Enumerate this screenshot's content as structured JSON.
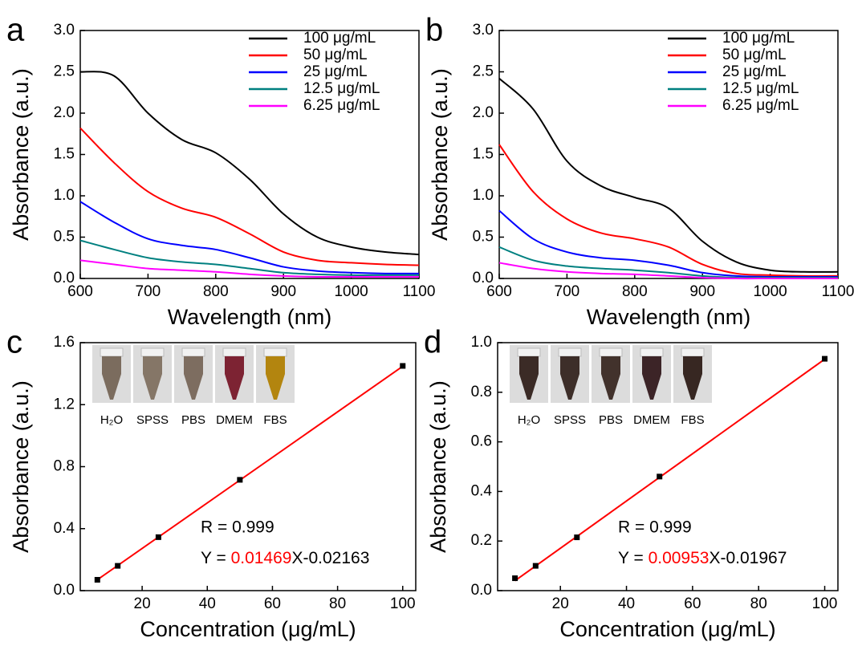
{
  "chart_data": [
    {
      "type": "line",
      "label": "a",
      "x_label": "Wavelength (nm)",
      "y_label": "Absorbance (a.u.)",
      "x": [
        600,
        650,
        700,
        750,
        800,
        850,
        900,
        950,
        1000,
        1050,
        1100
      ],
      "xlim": [
        600,
        1100
      ],
      "xticks": [
        600,
        700,
        800,
        900,
        1000,
        1100
      ],
      "ylim": [
        0,
        3
      ],
      "yticks": [
        {
          "value": 0,
          "label": "0.0"
        },
        0.5,
        {
          "value": 1,
          "label": "1.0"
        },
        1.5,
        {
          "value": 2,
          "label": "2.0"
        },
        2.5,
        {
          "value": 3,
          "label": "3.0"
        }
      ],
      "series": [
        {
          "name": "100 μg/mL",
          "color": "#000000",
          "values": [
            2.5,
            2.45,
            2.0,
            1.68,
            1.52,
            1.2,
            0.78,
            0.5,
            0.38,
            0.32,
            0.29
          ]
        },
        {
          "name": "50 μg/mL",
          "color": "#ff0000",
          "values": [
            1.82,
            1.4,
            1.05,
            0.85,
            0.74,
            0.54,
            0.32,
            0.22,
            0.19,
            0.17,
            0.16
          ]
        },
        {
          "name": "25 μg/mL",
          "color": "#0000ff",
          "values": [
            0.93,
            0.68,
            0.48,
            0.4,
            0.35,
            0.25,
            0.14,
            0.09,
            0.07,
            0.06,
            0.06
          ]
        },
        {
          "name": "12.5 μg/mL",
          "color": "#008080",
          "values": [
            0.46,
            0.35,
            0.25,
            0.2,
            0.17,
            0.12,
            0.07,
            0.05,
            0.04,
            0.04,
            0.04
          ]
        },
        {
          "name": "6.25 μg/mL",
          "color": "#ff00ff",
          "values": [
            0.22,
            0.17,
            0.12,
            0.1,
            0.08,
            0.05,
            0.03,
            0.02,
            0.02,
            0.02,
            0.02
          ]
        }
      ]
    },
    {
      "type": "line",
      "label": "b",
      "x_label": "Wavelength (nm)",
      "y_label": "Absorbance (a.u.)",
      "x": [
        600,
        650,
        700,
        750,
        800,
        850,
        900,
        950,
        1000,
        1050,
        1100
      ],
      "xlim": [
        600,
        1100
      ],
      "xticks": [
        600,
        700,
        800,
        900,
        1000,
        1100
      ],
      "ylim": [
        0,
        3
      ],
      "yticks": [
        {
          "value": 0,
          "label": "0.0"
        },
        0.5,
        {
          "value": 1,
          "label": "1.0"
        },
        1.5,
        {
          "value": 2,
          "label": "2.0"
        },
        2.5,
        {
          "value": 3,
          "label": "3.0"
        }
      ],
      "series": [
        {
          "name": "100 μg/mL",
          "color": "#000000",
          "values": [
            2.42,
            2.05,
            1.42,
            1.12,
            0.98,
            0.85,
            0.45,
            0.2,
            0.1,
            0.08,
            0.08
          ]
        },
        {
          "name": "50 μg/mL",
          "color": "#ff0000",
          "values": [
            1.62,
            1.05,
            0.72,
            0.55,
            0.48,
            0.38,
            0.17,
            0.06,
            0.04,
            0.03,
            0.03
          ]
        },
        {
          "name": "25 μg/mL",
          "color": "#0000ff",
          "values": [
            0.82,
            0.48,
            0.32,
            0.25,
            0.22,
            0.16,
            0.07,
            0.03,
            0.02,
            0.02,
            0.02
          ]
        },
        {
          "name": "12.5 μg/mL",
          "color": "#008080",
          "values": [
            0.38,
            0.22,
            0.15,
            0.12,
            0.1,
            0.07,
            0.03,
            0.01,
            0.01,
            0.01,
            0.01
          ]
        },
        {
          "name": "6.25 μg/mL",
          "color": "#ff00ff",
          "values": [
            0.19,
            0.12,
            0.08,
            0.06,
            0.05,
            0.03,
            0.01,
            0,
            0,
            0,
            0
          ]
        }
      ]
    },
    {
      "type": "scatter",
      "label": "c",
      "x_label": "Concentration (μg/mL)",
      "y_label": "Absorbance (a.u.)",
      "x": [
        6.25,
        12.5,
        25,
        50,
        100
      ],
      "values": [
        0.07,
        0.16,
        0.345,
        0.715,
        1.45
      ],
      "color": "#000000",
      "fit_color": "#ff0000",
      "xlim": [
        1,
        104
      ],
      "xticks": [
        20,
        40,
        60,
        80,
        100
      ],
      "ylim": [
        0,
        1.6
      ],
      "yticks": [
        {
          "value": 0,
          "label": "0.0"
        },
        0.4,
        0.8,
        1.2,
        1.6
      ],
      "r_text": "R = 0.999",
      "equation": {
        "prefix": "Y = ",
        "slope": 0.01469,
        "slope_color": "#ff0000",
        "middle": "X",
        "intercept": -0.02163
      },
      "insets": [
        "H₂O",
        "SPSS",
        "PBS",
        "DMEM",
        "FBS"
      ]
    },
    {
      "type": "scatter",
      "label": "d",
      "x_label": "Concentration (μg/mL)",
      "y_label": "Absorbance (a.u.)",
      "x": [
        6.25,
        12.5,
        25,
        50,
        100
      ],
      "values": [
        0.05,
        0.1,
        0.215,
        0.46,
        0.935
      ],
      "color": "#000000",
      "fit_color": "#ff0000",
      "xlim": [
        1,
        104
      ],
      "xticks": [
        20,
        40,
        60,
        80,
        100
      ],
      "ylim": [
        0,
        1
      ],
      "yticks": [
        {
          "value": 0,
          "label": "0.0"
        },
        0.2,
        0.4,
        0.6,
        0.8,
        {
          "value": 1,
          "label": "1.0"
        }
      ],
      "r_text": "R = 0.999",
      "equation": {
        "prefix": "Y = ",
        "slope": 0.00953,
        "slope_color": "#ff0000",
        "middle": "X",
        "intercept": -0.01967
      },
      "insets": [
        "H₂O",
        "SPSS",
        "PBS",
        "DMEM",
        "FBS"
      ]
    }
  ]
}
